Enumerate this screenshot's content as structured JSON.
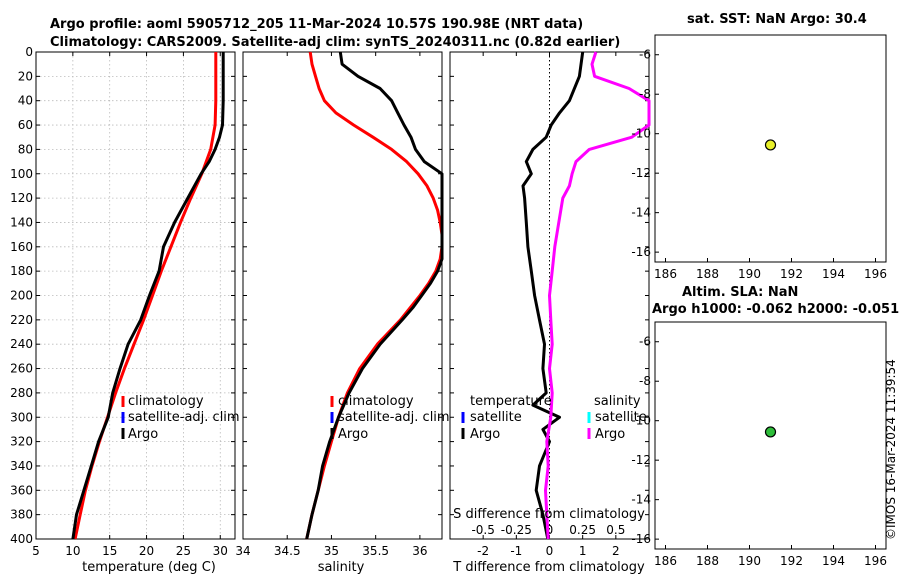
{
  "title": {
    "line1": "Argo profile: aoml 5905712_205 11-Mar-2024 10.57S 190.98E (NRT data)",
    "line2": "Climatology: CARS2009. Satellite-adj clim: synTS_20240311.nc (0.82d earlier)"
  },
  "watermark": "©IMOS 16-Mar-2024 11:39:54",
  "colors": {
    "climatology": "#ff0000",
    "satellite_adj": "#0000ff",
    "argo": "#000000",
    "salinity_argo": "#ff00ff",
    "salinity_satellite": "#00ffff",
    "sst_marker": "#e8f02a",
    "sla_marker": "#2ebd3a"
  },
  "legend_temp": [
    "climatology",
    "satellite-adj. clim",
    "Argo"
  ],
  "legend_sal": [
    "climatology",
    "satellite-adj. clim",
    "Argo"
  ],
  "legend_diff": {
    "temp_title": "temperature",
    "sal_title": "salinity",
    "satellite": "satellite",
    "argo": "Argo"
  },
  "map_top": {
    "title": "sat. SST: NaN Argo: 30.4"
  },
  "map_bottom": {
    "title1": "Altim. SLA: NaN",
    "title2": "Argo h1000: -0.062 h2000: -0.051"
  },
  "chart_data": [
    {
      "type": "line",
      "xlabel": "temperature (deg C)",
      "ylabel": "",
      "xlim": [
        5,
        32
      ],
      "ylim": [
        400,
        0
      ],
      "xticks": [
        "5",
        "10",
        "15",
        "20",
        "25",
        "30"
      ],
      "yticks": [
        "0",
        "20",
        "40",
        "60",
        "80",
        "100",
        "120",
        "140",
        "160",
        "180",
        "200",
        "220",
        "240",
        "260",
        "280",
        "300",
        "320",
        "340",
        "360",
        "380",
        "400"
      ],
      "grid": true,
      "series": [
        {
          "name": "climatology",
          "depth": [
            0,
            20,
            40,
            60,
            80,
            100,
            120,
            140,
            160,
            180,
            200,
            220,
            240,
            260,
            280,
            300,
            320,
            340,
            360,
            380,
            400
          ],
          "values": [
            29.4,
            29.4,
            29.4,
            29.3,
            28.7,
            27.5,
            26.0,
            24.6,
            23.3,
            22.0,
            20.8,
            19.6,
            18.3,
            17.0,
            15.8,
            14.7,
            13.6,
            12.6,
            11.7,
            11.0,
            10.3
          ]
        },
        {
          "name": "Argo",
          "depth": [
            0,
            20,
            40,
            60,
            70,
            80,
            90,
            100,
            120,
            140,
            160,
            180,
            200,
            220,
            240,
            260,
            280,
            300,
            320,
            340,
            360,
            380,
            400
          ],
          "values": [
            30.4,
            30.4,
            30.4,
            30.3,
            29.9,
            29.3,
            28.5,
            27.4,
            25.6,
            23.8,
            22.3,
            21.7,
            20.4,
            19.2,
            17.5,
            16.4,
            15.4,
            14.8,
            13.5,
            12.5,
            11.5,
            10.5,
            10.0
          ]
        }
      ]
    },
    {
      "type": "line",
      "xlabel": "salinity",
      "ylabel": "",
      "xlim": [
        34.0,
        36.25
      ],
      "ylim": [
        400,
        0
      ],
      "xticks": [
        "34",
        "34.5",
        "35",
        "35.5",
        "36"
      ],
      "grid": false,
      "series": [
        {
          "name": "climatology",
          "depth": [
            0,
            10,
            20,
            30,
            40,
            50,
            60,
            70,
            80,
            90,
            100,
            110,
            120,
            130,
            140,
            150,
            160,
            170,
            180,
            190,
            200,
            220,
            240,
            260,
            280,
            300,
            320,
            340,
            360,
            380,
            400
          ],
          "values": [
            34.76,
            34.78,
            34.82,
            34.86,
            34.92,
            35.05,
            35.25,
            35.47,
            35.68,
            35.85,
            35.98,
            36.08,
            36.15,
            36.2,
            36.23,
            36.25,
            36.25,
            36.23,
            36.18,
            36.1,
            36.0,
            35.78,
            35.52,
            35.32,
            35.18,
            35.08,
            35.0,
            34.92,
            34.85,
            34.78,
            34.72
          ]
        },
        {
          "name": "Argo",
          "depth": [
            0,
            10,
            20,
            30,
            40,
            50,
            60,
            70,
            80,
            90,
            100,
            110,
            120,
            140,
            160,
            170,
            180,
            190,
            200,
            210,
            220,
            240,
            260,
            280,
            300,
            320,
            340,
            360,
            380,
            400
          ],
          "values": [
            35.1,
            35.12,
            35.3,
            35.55,
            35.68,
            35.75,
            35.82,
            35.9,
            35.95,
            36.05,
            36.25,
            36.3,
            36.35,
            36.35,
            36.3,
            36.25,
            36.2,
            36.12,
            36.02,
            35.92,
            35.8,
            35.55,
            35.35,
            35.2,
            35.08,
            34.98,
            34.9,
            34.85,
            34.78,
            34.72
          ]
        }
      ]
    },
    {
      "type": "line",
      "xlabel": "T difference from climatology",
      "x2label": "S difference from climatology",
      "ylabel": "",
      "xlim": [
        -3,
        3
      ],
      "x2lim": [
        -0.75,
        0.75
      ],
      "ylim": [
        400,
        0
      ],
      "xticks": [
        "-2",
        "-1",
        "0",
        "1",
        "2"
      ],
      "x2ticks": [
        "-0.5",
        "-0.25",
        "0",
        "0.25",
        "0.5"
      ],
      "grid": false,
      "series": [
        {
          "name": "temperature Argo",
          "depth": [
            0,
            20,
            40,
            50,
            60,
            70,
            80,
            90,
            100,
            110,
            120,
            140,
            160,
            180,
            200,
            220,
            240,
            260,
            280,
            290,
            300,
            310,
            320,
            340,
            360,
            380,
            400
          ],
          "values": [
            1.0,
            0.9,
            0.6,
            0.3,
            0.05,
            -0.1,
            -0.5,
            -0.7,
            -0.55,
            -0.8,
            -0.75,
            -0.7,
            -0.65,
            -0.55,
            -0.45,
            -0.3,
            -0.15,
            -0.2,
            -0.1,
            -0.5,
            0.3,
            -0.2,
            0.0,
            -0.3,
            -0.4,
            -0.2,
            -0.05
          ]
        },
        {
          "name": "salinity Argo",
          "depth": [
            0,
            10,
            20,
            30,
            40,
            60,
            70,
            80,
            90,
            100,
            110,
            120,
            140,
            160,
            180,
            200,
            220,
            240,
            260,
            280,
            300,
            320,
            340,
            360,
            380,
            400
          ],
          "values": [
            0.35,
            0.32,
            0.34,
            0.6,
            0.75,
            0.75,
            0.62,
            0.3,
            0.2,
            0.17,
            0.15,
            0.1,
            0.07,
            0.04,
            0.02,
            0.0,
            0.01,
            0.02,
            0.0,
            0.02,
            0.01,
            -0.02,
            -0.01,
            -0.03,
            -0.02,
            -0.01
          ]
        }
      ]
    },
    {
      "type": "scatter",
      "title": "sat. SST: NaN Argo: 30.4",
      "xlim": [
        185.5,
        196.5
      ],
      "ylim": [
        -16.5,
        -5
      ],
      "xticks": [
        "186",
        "188",
        "190",
        "192",
        "194",
        "196"
      ],
      "yticks": [
        "-6",
        "-8",
        "-10",
        "-12",
        "-14",
        "-16"
      ],
      "points": [
        {
          "x": 191.0,
          "y": -10.57
        }
      ]
    },
    {
      "type": "scatter",
      "title": "Altim. SLA: NaN",
      "xlim": [
        185.5,
        196.5
      ],
      "ylim": [
        -16.5,
        -5
      ],
      "xticks": [
        "186",
        "188",
        "190",
        "192",
        "194",
        "196"
      ],
      "yticks": [
        "-6",
        "-8",
        "-10",
        "-12",
        "-14",
        "-16"
      ],
      "points": [
        {
          "x": 191.0,
          "y": -10.57
        }
      ]
    }
  ]
}
